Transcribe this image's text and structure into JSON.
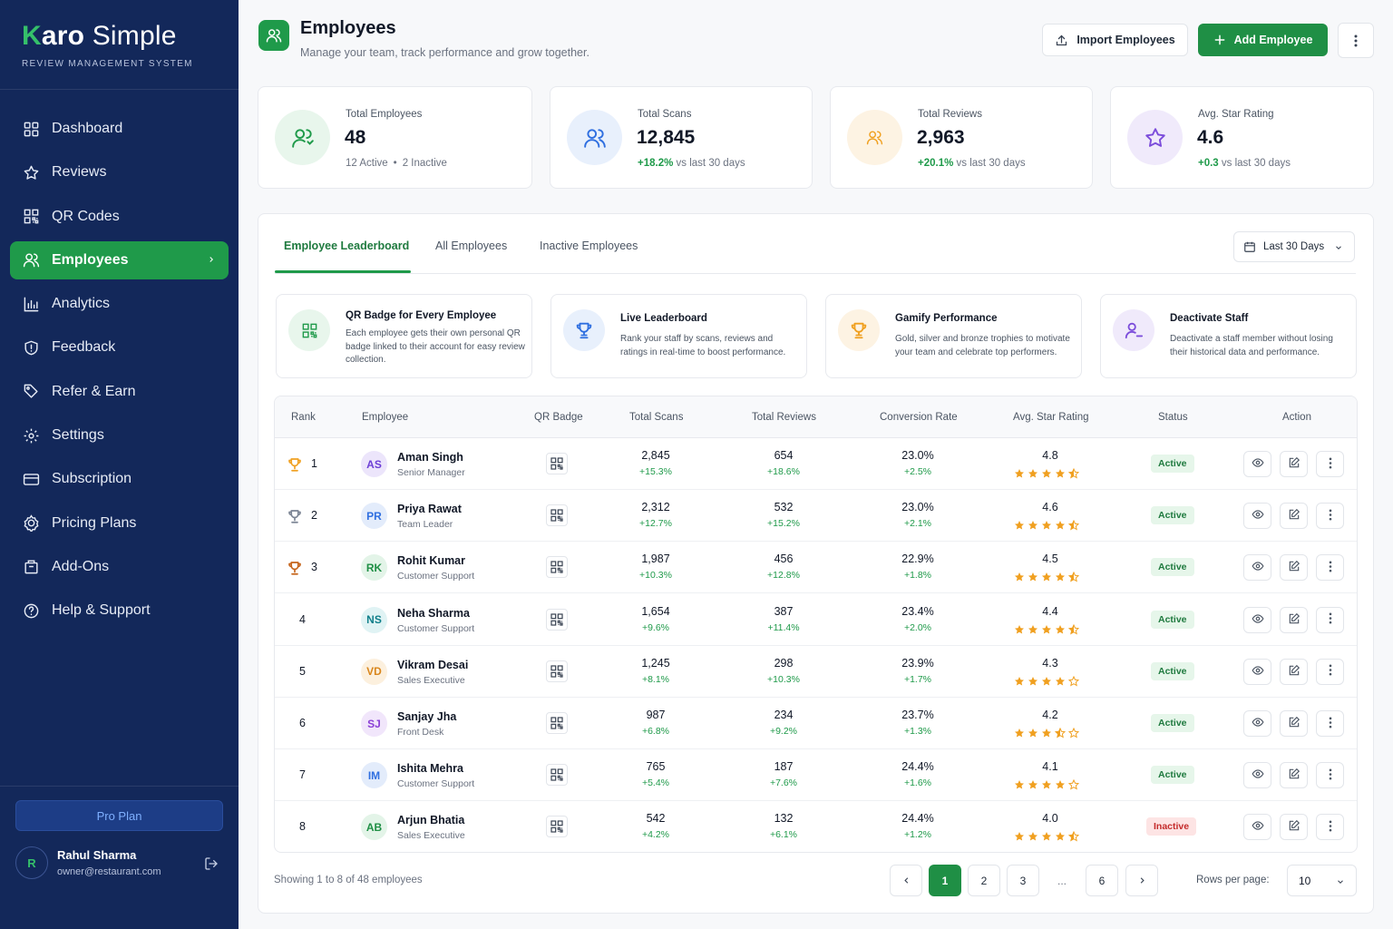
{
  "brand": {
    "k": "K",
    "aro": "aro",
    "simple": " Simple",
    "subtitle": "REVIEW MANAGEMENT SYSTEM"
  },
  "nav": [
    {
      "label": "Dashboard",
      "icon": "dashboard-icon"
    },
    {
      "label": "Reviews",
      "icon": "star-icon"
    },
    {
      "label": "QR Codes",
      "icon": "qr-code-icon"
    },
    {
      "label": "Employees",
      "icon": "users-icon",
      "active": true
    },
    {
      "label": "Analytics",
      "icon": "bar-chart-icon"
    },
    {
      "label": "Feedback",
      "icon": "shield-icon"
    },
    {
      "label": "Refer & Earn",
      "icon": "tag-icon"
    },
    {
      "label": "Settings",
      "icon": "gear-icon"
    },
    {
      "label": "Subscription",
      "icon": "credit-card-icon"
    },
    {
      "label": "Pricing Plans",
      "icon": "gear-badge-icon"
    },
    {
      "label": "Add-Ons",
      "icon": "package-icon"
    },
    {
      "label": "Help & Support",
      "icon": "help-circle-icon"
    }
  ],
  "plan": {
    "label": "Pro Plan"
  },
  "user": {
    "initial": "R",
    "name": "Rahul Sharma",
    "email": "owner@restaurant.com"
  },
  "header": {
    "title": "Employees",
    "subtitle": "Manage your team, track performance and grow together.",
    "import_label": "Import Employees",
    "add_label": "Add Employee"
  },
  "stats": [
    {
      "label": "Total Employees",
      "value": "48",
      "sub_a": "12 Active",
      "sub_sep": "•",
      "sub_b": "2 Inactive",
      "color": "#1f9a4a",
      "bg": "#e8f6ec"
    },
    {
      "label": "Total Scans",
      "value": "12,845",
      "change": "+18.2%",
      "suffix": "vs last 30 days",
      "color": "#2f6fe0",
      "bg": "#e8f0fc"
    },
    {
      "label": "Total Reviews",
      "value": "2,963",
      "change": "+20.1%",
      "suffix": "vs last 30 days",
      "color": "#f0a020",
      "bg": "#fdf3e3"
    },
    {
      "label": "Avg. Star Rating",
      "value": "4.6",
      "change": "+0.3",
      "suffix": "vs last 30 days",
      "color": "#7c4ddb",
      "bg": "#f0eafb"
    }
  ],
  "tabs": [
    {
      "label": "Employee Leaderboard",
      "active": true
    },
    {
      "label": "All Employees"
    },
    {
      "label": "Inactive Employees"
    }
  ],
  "date_filter": {
    "label": "Last 30 Days"
  },
  "features": [
    {
      "title": "QR Badge for Every Employee",
      "desc": "Each employee gets their own personal QR badge linked to their account for easy review collection.",
      "icon": "qr-code-icon",
      "color": "#1f9a4a",
      "bg": "#e8f6ec"
    },
    {
      "title": "Live Leaderboard",
      "desc": "Rank your staff by scans, reviews and ratings in real-time to boost performance.",
      "icon": "trophy-icon",
      "color": "#2f6fe0",
      "bg": "#e8f0fc"
    },
    {
      "title": "Gamify Performance",
      "desc": "Gold, silver and bronze trophies to motivate your team and celebrate top performers.",
      "icon": "trophy-icon",
      "color": "#f0a020",
      "bg": "#fdf3e3"
    },
    {
      "title": "Deactivate Staff",
      "desc": "Deactivate a staff member without losing their historical data and performance.",
      "icon": "user-minus-icon",
      "color": "#7c4ddb",
      "bg": "#f0eafb"
    }
  ],
  "table": {
    "headers": [
      "Rank",
      "Employee",
      "QR Badge",
      "Total Scans",
      "Total Reviews",
      "Conversion Rate",
      "Avg. Star Rating",
      "Status",
      "Action"
    ],
    "rows": [
      {
        "rank": "1",
        "trophy": "#f0a020",
        "initials": "AS",
        "av_color": "#6d3fd6",
        "av_bg": "#ece5fb",
        "name": "Aman Singh",
        "role": "Senior Manager",
        "scans": "2,845",
        "scans_chg": "+15.3%",
        "reviews": "654",
        "reviews_chg": "+18.6%",
        "conv": "23.0%",
        "conv_chg": "+2.5%",
        "rating": "4.8",
        "stars": 4.5,
        "status": "Active",
        "status_type": "active"
      },
      {
        "rank": "2",
        "trophy": "#7b8494",
        "initials": "PR",
        "av_color": "#2f6fe0",
        "av_bg": "#e3ecfb",
        "name": "Priya Rawat",
        "role": "Team Leader",
        "scans": "2,312",
        "scans_chg": "+12.7%",
        "reviews": "532",
        "reviews_chg": "+15.2%",
        "conv": "23.0%",
        "conv_chg": "+2.1%",
        "rating": "4.6",
        "stars": 4.5,
        "status": "Active",
        "status_type": "active"
      },
      {
        "rank": "3",
        "trophy": "#c5641b",
        "initials": "RK",
        "av_color": "#1f8f45",
        "av_bg": "#e3f4e8",
        "name": "Rohit Kumar",
        "role": "Customer Support",
        "scans": "1,987",
        "scans_chg": "+10.3%",
        "reviews": "456",
        "reviews_chg": "+12.8%",
        "conv": "22.9%",
        "conv_chg": "+1.8%",
        "rating": "4.5",
        "stars": 4.5,
        "status": "Active",
        "status_type": "active"
      },
      {
        "rank": "4",
        "trophy": "",
        "initials": "NS",
        "av_color": "#0f7f8a",
        "av_bg": "#e0f3f4",
        "name": "Neha Sharma",
        "role": "Customer Support",
        "scans": "1,654",
        "scans_chg": "+9.6%",
        "reviews": "387",
        "reviews_chg": "+11.4%",
        "conv": "23.4%",
        "conv_chg": "+2.0%",
        "rating": "4.4",
        "stars": 4.5,
        "status": "Active",
        "status_type": "active"
      },
      {
        "rank": "5",
        "trophy": "",
        "initials": "VD",
        "av_color": "#d9861c",
        "av_bg": "#fcf0de",
        "name": "Vikram Desai",
        "role": "Sales Executive",
        "scans": "1,245",
        "scans_chg": "+8.1%",
        "reviews": "298",
        "reviews_chg": "+10.3%",
        "conv": "23.9%",
        "conv_chg": "+1.7%",
        "rating": "4.3",
        "stars": 4,
        "status": "Active",
        "status_type": "active"
      },
      {
        "rank": "6",
        "trophy": "",
        "initials": "SJ",
        "av_color": "#8a3fd6",
        "av_bg": "#f1e6fb",
        "name": "Sanjay Jha",
        "role": "Front Desk",
        "scans": "987",
        "scans_chg": "+6.8%",
        "reviews": "234",
        "reviews_chg": "+9.2%",
        "conv": "23.7%",
        "conv_chg": "+1.3%",
        "rating": "4.2",
        "stars": 3.5,
        "status": "Active",
        "status_type": "active"
      },
      {
        "rank": "7",
        "trophy": "",
        "initials": "IM",
        "av_color": "#2f6fe0",
        "av_bg": "#e3ecfb",
        "name": "Ishita Mehra",
        "role": "Customer Support",
        "scans": "765",
        "scans_chg": "+5.4%",
        "reviews": "187",
        "reviews_chg": "+7.6%",
        "conv": "24.4%",
        "conv_chg": "+1.6%",
        "rating": "4.1",
        "stars": 4,
        "status": "Active",
        "status_type": "active"
      },
      {
        "rank": "8",
        "trophy": "",
        "initials": "AB",
        "av_color": "#1f8f45",
        "av_bg": "#e3f4e8",
        "name": "Arjun Bhatia",
        "role": "Sales Executive",
        "scans": "542",
        "scans_chg": "+4.2%",
        "reviews": "132",
        "reviews_chg": "+6.1%",
        "conv": "24.4%",
        "conv_chg": "+1.2%",
        "rating": "4.0",
        "stars": 4.5,
        "status": "Inactive",
        "status_type": "inactive"
      }
    ]
  },
  "footer": {
    "showing": "Showing 1 to 8 of 48 employees",
    "pages": [
      "1",
      "2",
      "3",
      "...",
      "6"
    ],
    "current_page": "1",
    "rows_label": "Rows per page:",
    "rows_value": "10"
  }
}
